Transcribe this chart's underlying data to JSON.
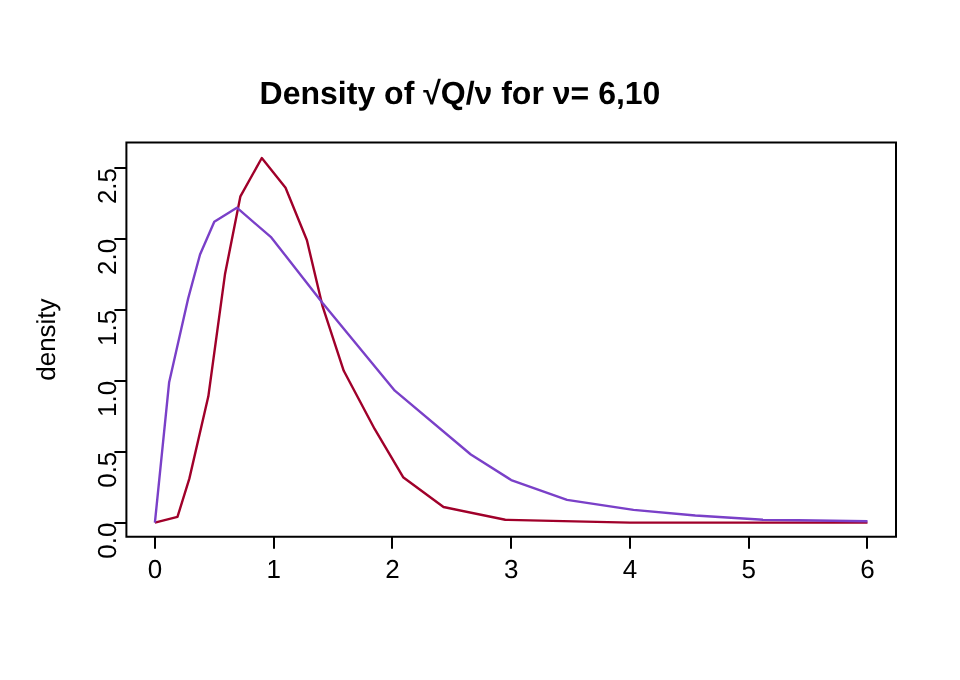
{
  "chart_data": {
    "type": "line",
    "title": "Density of √Q/ν for ν= 6,10",
    "ylabel": "density",
    "xlim": [
      -0.24,
      6.24
    ],
    "xticks": [
      0,
      1,
      2,
      3,
      4,
      5,
      6
    ],
    "ylim": [
      -0.1,
      2.68
    ],
    "yticks": [
      {
        "value": 0,
        "label": "0.0"
      },
      {
        "value": 0.5,
        "label": "0.5"
      },
      {
        "value": 1,
        "label": "1.0"
      },
      {
        "value": 1.5,
        "label": "1.5"
      },
      {
        "value": 2,
        "label": "2.0"
      },
      {
        "value": 2.5,
        "label": "2.5"
      }
    ],
    "grid": false,
    "legend": false,
    "marker": "none",
    "line_style": "solid",
    "series": [
      {
        "color": "#7a40c8",
        "x": [
          0,
          0.12,
          0.28,
          0.38,
          0.5,
          0.69,
          0.98,
          1.41,
          2.02,
          2.66,
          3.0,
          3.47,
          4.03,
          4.55,
          5.12,
          6
        ],
        "values": [
          0,
          0.99,
          1.58,
          1.89,
          2.12,
          2.22,
          2.01,
          1.55,
          0.93,
          0.48,
          0.3,
          0.16,
          0.09,
          0.05,
          0.02,
          0.01
        ]
      },
      {
        "color": "#a0002a",
        "x": [
          0,
          0.19,
          0.29,
          0.45,
          0.59,
          0.72,
          0.9,
          1.1,
          1.28,
          1.41,
          1.59,
          1.85,
          2.09,
          2.43,
          2.95,
          4,
          6
        ],
        "values": [
          0,
          0.04,
          0.31,
          0.89,
          1.75,
          2.3,
          2.57,
          2.36,
          1.99,
          1.53,
          1.07,
          0.66,
          0.32,
          0.11,
          0.02,
          0,
          0
        ]
      }
    ]
  }
}
